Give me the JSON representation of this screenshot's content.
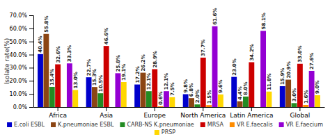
{
  "chart_data": {
    "type": "bar",
    "categories": [
      "Africa",
      "Asia",
      "Europe",
      "North America",
      "Latin America",
      "Global"
    ],
    "series": [
      {
        "name": "E.coli ESBL",
        "color": "#0000CC",
        "values": [
          40.4,
          22.7,
          17.2,
          9.8,
          23.0,
          15.9
        ],
        "value_labels": [
          "40.4%",
          "22.7%",
          "17.2%",
          "9.8%",
          "23.0%",
          "15.9%"
        ]
      },
      {
        "name": "K.pneumoniae ESBL",
        "color": "#8B4513",
        "values": [
          55.8,
          15.3,
          26.2,
          6.8,
          4.4,
          20.9
        ],
        "value_labels": [
          "55.8%",
          "15.3%",
          "26.2%",
          "6.8%",
          "4.4%",
          "20.9%"
        ]
      },
      {
        "name": "CARB-NS K.pneumoniae",
        "color": "#228B22",
        "values": [
          15.4,
          10.5,
          12.1,
          2.0,
          8.0,
          3.0
        ],
        "value_labels": [
          "15.4%",
          "10.5%",
          "12.1%",
          "2.0%",
          "8.0%",
          "3.0%"
        ]
      },
      {
        "name": "MRSA",
        "color": "#CC0000",
        "values": [
          32.6,
          46.6,
          28.9,
          37.7,
          34.2,
          33.0
        ],
        "value_labels": [
          "32.6%",
          "46.6%",
          "28.9%",
          "37.7%",
          "34.2%",
          "33.0%"
        ]
      },
      {
        "name": "VR E.faecalis",
        "color": "#FF8C00",
        "values": [
          0.0,
          0.0,
          0.6,
          1.5,
          0.0,
          1.6
        ],
        "value_labels": [
          null,
          null,
          "0.6%",
          "1.5%",
          null,
          "1.6%"
        ]
      },
      {
        "name": "VR E.faecium",
        "color": "#9400D3",
        "values": [
          33.3,
          25.8,
          12.1,
          61.6,
          58.1,
          27.6
        ],
        "value_labels": [
          "33.3%",
          "25.8%",
          "12.1%",
          "61.6%",
          "58.1%",
          "27.6%"
        ]
      },
      {
        "name": "PRSP",
        "color": "#FFD700",
        "values": [
          13.0,
          19.1,
          7.5,
          9.6,
          11.8,
          9.0
        ],
        "value_labels": [
          "13.0%",
          "19.1%",
          "7.5%",
          "9.6%",
          "11.8%",
          "9.0%"
        ]
      }
    ],
    "ylabel": "Isolate rate(%)",
    "ylim": [
      0,
      70
    ],
    "yticks": [
      {
        "value": 0,
        "label": "0.0%"
      },
      {
        "value": 10,
        "label": "10.0%"
      },
      {
        "value": 20,
        "label": "20.0%"
      },
      {
        "value": 30,
        "label": "30.0%"
      },
      {
        "value": 40,
        "label": "40.0%"
      },
      {
        "value": 50,
        "label": "50.0%"
      },
      {
        "value": 60,
        "label": "60.0%"
      },
      {
        "value": 70,
        "label": "70.0%"
      }
    ],
    "grid": false,
    "data_labels": true,
    "legend": "bottom"
  }
}
